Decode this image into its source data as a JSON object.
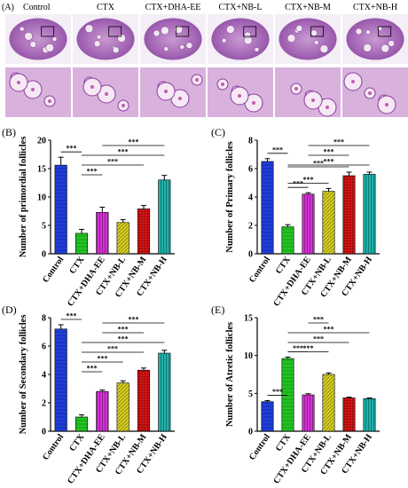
{
  "panel_a": {
    "label": "(A)",
    "columns": [
      "Control",
      "CTX",
      "CTX+DHA-EE",
      "CTX+NB-L",
      "CTX+NB-M",
      "CTX+NB-H"
    ],
    "images": "ovary histology micrographs (H&E), 6 groups, overview row and magnified row"
  },
  "chart_data": [
    {
      "type": "bar",
      "panel_label": "(B)",
      "ylabel": "Number of primordial follicles",
      "categories": [
        "Control",
        "CTX",
        "CTX+DHA-EE",
        "CTX+NB-L",
        "CTX+NB-M",
        "CTX+NB-H"
      ],
      "values": [
        15.6,
        3.6,
        7.3,
        5.5,
        7.9,
        13.0
      ],
      "errors": [
        1.4,
        0.7,
        0.9,
        0.5,
        0.6,
        0.8
      ],
      "ylim": [
        0,
        20
      ],
      "yticks": [
        "0",
        "5",
        "10",
        "15",
        "20"
      ],
      "colors": [
        "#1f3fd8",
        "#22c322",
        "#d035d0",
        "#d8d020",
        "#e01515",
        "#20b0a8"
      ],
      "significance": [
        [
          "Control",
          "CTX",
          "***"
        ],
        [
          "CTX",
          "CTX+DHA-EE",
          "***"
        ],
        [
          "CTX",
          "CTX+NB-M",
          "***"
        ],
        [
          "CTX",
          "CTX+NB-H",
          "***"
        ],
        [
          "CTX+DHA-EE",
          "CTX+NB-H",
          "***"
        ]
      ]
    },
    {
      "type": "bar",
      "panel_label": "(C)",
      "ylabel": "Number of Primary follicles",
      "categories": [
        "Control",
        "CTX",
        "CTX+DHA-EE",
        "CTX+NB-L",
        "CTX+NB-M",
        "CTX+NB-H"
      ],
      "values": [
        6.5,
        1.9,
        4.2,
        4.4,
        5.5,
        5.6
      ],
      "errors": [
        0.2,
        0.15,
        0.1,
        0.2,
        0.25,
        0.15
      ],
      "ylim": [
        0,
        8
      ],
      "yticks": [
        "0",
        "2",
        "4",
        "6",
        "8"
      ],
      "colors": [
        "#1f3fd8",
        "#22c322",
        "#d035d0",
        "#d8d020",
        "#e01515",
        "#20b0a8"
      ],
      "significance": [
        [
          "Control",
          "CTX",
          "***"
        ],
        [
          "CTX",
          "CTX+DHA-EE",
          "***"
        ],
        [
          "CTX",
          "CTX+NB-L",
          "***"
        ],
        [
          "CTX",
          "CTX+NB-M",
          "***"
        ],
        [
          "CTX",
          "CTX+NB-H",
          "***"
        ],
        [
          "CTX+DHA-EE",
          "CTX+NB-M",
          "***"
        ],
        [
          "CTX+DHA-EE",
          "CTX+NB-H",
          "***"
        ]
      ]
    },
    {
      "type": "bar",
      "panel_label": "(D)",
      "ylabel": "Number of Secondary follicles",
      "categories": [
        "Control",
        "CTX",
        "CTX+DHA-EE",
        "CTX+NB-L",
        "CTX+NB-M",
        "CTX+NB-H"
      ],
      "values": [
        7.2,
        1.0,
        2.8,
        3.4,
        4.3,
        5.5
      ],
      "errors": [
        0.3,
        0.15,
        0.1,
        0.15,
        0.15,
        0.2
      ],
      "ylim": [
        0,
        8
      ],
      "yticks": [
        "0",
        "2",
        "4",
        "6",
        "8"
      ],
      "colors": [
        "#1f3fd8",
        "#22c322",
        "#d035d0",
        "#d8d020",
        "#e01515",
        "#20b0a8"
      ],
      "significance": [
        [
          "Control",
          "CTX",
          "***"
        ],
        [
          "CTX",
          "CTX+DHA-EE",
          "***"
        ],
        [
          "CTX",
          "CTX+NB-L",
          "***"
        ],
        [
          "CTX",
          "CTX+NB-M",
          "***"
        ],
        [
          "CTX",
          "CTX+NB-H",
          "***"
        ],
        [
          "CTX+DHA-EE",
          "CTX+NB-M",
          "***"
        ],
        [
          "CTX+DHA-EE",
          "CTX+NB-H",
          "***"
        ]
      ]
    },
    {
      "type": "bar",
      "panel_label": "(E)",
      "ylabel": "Number of Atretic follicles",
      "categories": [
        "Control",
        "CTX",
        "CTX+DHA-EE",
        "CTX+NB-L",
        "CTX+NB-M",
        "CTX+NB-H"
      ],
      "values": [
        3.9,
        9.6,
        4.8,
        7.5,
        4.4,
        4.3
      ],
      "errors": [
        0.15,
        0.2,
        0.15,
        0.2,
        0.1,
        0.1
      ],
      "ylim": [
        0,
        15
      ],
      "yticks": [
        "0",
        "5",
        "10",
        "15"
      ],
      "colors": [
        "#1f3fd8",
        "#22c322",
        "#d035d0",
        "#d8d020",
        "#e01515",
        "#20b0a8"
      ],
      "significance": [
        [
          "Control",
          "CTX",
          "***"
        ],
        [
          "CTX",
          "CTX+DHA-EE",
          "***"
        ],
        [
          "CTX",
          "CTX+NB-L",
          "***"
        ],
        [
          "CTX",
          "CTX+NB-M",
          "***"
        ],
        [
          "CTX",
          "CTX+NB-H",
          "***"
        ],
        [
          "CTX+DHA-EE",
          "CTX+NB-L",
          "***"
        ]
      ]
    }
  ]
}
